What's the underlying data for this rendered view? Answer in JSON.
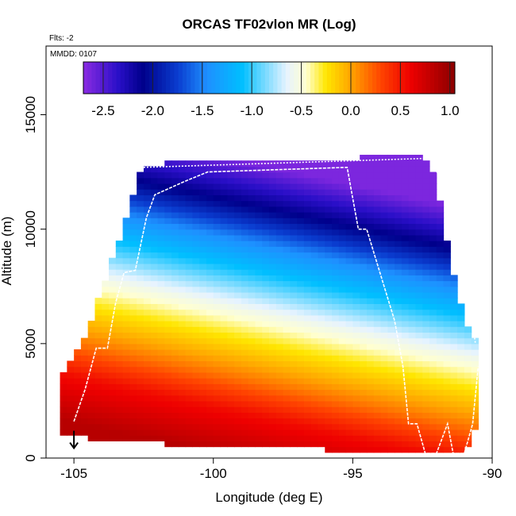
{
  "chart_data": {
    "type": "heatmap",
    "title": "ORCAS TF02vlon MR (Log)",
    "xlabel": "Longitude (deg E)",
    "ylabel": "Altitude (m)",
    "xlim": [
      -106,
      -90
    ],
    "ylim": [
      0,
      18000
    ],
    "xticks": [
      -105,
      -100,
      -95,
      -90
    ],
    "yticks": [
      0,
      5000,
      10000,
      15000
    ],
    "xtick_labels": [
      "-105",
      "-100",
      "-95",
      "-90"
    ],
    "ytick_labels": [
      "0",
      "5000",
      "10000",
      "15000"
    ],
    "annotations": {
      "flights": "Flts: -2",
      "date": "MMDD: 0107"
    },
    "colorbar": {
      "range": [
        -2.7,
        1.05
      ],
      "ticks": [
        -2.5,
        -2.0,
        -1.5,
        -1.0,
        -0.5,
        0.0,
        0.5,
        1.0
      ],
      "tick_labels": [
        "-2.5",
        "-2.0",
        "-1.5",
        "-1.0",
        "-0.5",
        "0.0",
        "0.5",
        "1.0"
      ],
      "colors": [
        {
          "v": -2.7,
          "c": "#8a2be2"
        },
        {
          "v": -2.35,
          "c": "#2a0fc8"
        },
        {
          "v": -2.1,
          "c": "#00008b"
        },
        {
          "v": -1.75,
          "c": "#0a3ccf"
        },
        {
          "v": -1.45,
          "c": "#1e90ff"
        },
        {
          "v": -1.1,
          "c": "#00bfff"
        },
        {
          "v": -0.65,
          "c": "#e6f3ff"
        },
        {
          "v": -0.45,
          "c": "#ffffd0"
        },
        {
          "v": -0.25,
          "c": "#ffe600"
        },
        {
          "v": 0.0,
          "c": "#ffa500"
        },
        {
          "v": 0.3,
          "c": "#ff4500"
        },
        {
          "v": 0.6,
          "c": "#ee0000"
        },
        {
          "v": 1.05,
          "c": "#8b0000"
        }
      ]
    },
    "field": {
      "description": "log10 mixing ratio vs altitude; decreases with height, tilted toward west",
      "profile": [
        {
          "alt": 0,
          "v": 0.85
        },
        {
          "alt": 2000,
          "v": 0.55
        },
        {
          "alt": 3500,
          "v": 0.15
        },
        {
          "alt": 5000,
          "v": -0.2
        },
        {
          "alt": 6500,
          "v": -0.55
        },
        {
          "alt": 8000,
          "v": -1.0
        },
        {
          "alt": 9500,
          "v": -1.45
        },
        {
          "alt": 11000,
          "v": -2.05
        },
        {
          "alt": 12000,
          "v": -2.35
        },
        {
          "alt": 13000,
          "v": -2.65
        }
      ],
      "tilt_m_per_deg": 260,
      "tilt_reference_lon": -99
    },
    "coverage_envelope": [
      {
        "lon": -105.5,
        "bottom": 1000,
        "top": 3200
      },
      {
        "lon": -105,
        "bottom": 1000,
        "top": 4500
      },
      {
        "lon": -104.5,
        "bottom": 1000,
        "top": 5500
      },
      {
        "lon": -104,
        "bottom": 900,
        "top": 7200
      },
      {
        "lon": -103.5,
        "bottom": 850,
        "top": 9000
      },
      {
        "lon": -103,
        "bottom": 800,
        "top": 11000
      },
      {
        "lon": -102.5,
        "bottom": 800,
        "top": 12700
      },
      {
        "lon": -101,
        "bottom": 700,
        "top": 12800
      },
      {
        "lon": -99,
        "bottom": 700,
        "top": 12800
      },
      {
        "lon": -96,
        "bottom": 500,
        "top": 12800
      },
      {
        "lon": -94,
        "bottom": 400,
        "top": 13100
      },
      {
        "lon": -92.5,
        "bottom": 300,
        "top": 13100
      },
      {
        "lon": -92,
        "bottom": 300,
        "top": 12000
      },
      {
        "lon": -91.5,
        "bottom": 300,
        "top": 8500
      },
      {
        "lon": -91,
        "bottom": 300,
        "top": 6000
      },
      {
        "lon": -90.6,
        "bottom": 1400,
        "top": 5000
      }
    ],
    "flight_tracks": [
      [
        [
          -105,
          1600
        ],
        [
          -104.6,
          3000
        ],
        [
          -104.2,
          4800
        ],
        [
          -103.8,
          4800
        ],
        [
          -103.5,
          6800
        ],
        [
          -103.2,
          8100
        ],
        [
          -102.8,
          8200
        ],
        [
          -102.4,
          10500
        ],
        [
          -102.1,
          11500
        ],
        [
          -101,
          12100
        ],
        [
          -100.2,
          12500
        ],
        [
          -95.2,
          12700
        ],
        [
          -94.8,
          10000
        ],
        [
          -94.5,
          10000
        ],
        [
          -93.5,
          6000
        ],
        [
          -93.2,
          4000
        ],
        [
          -93,
          1500
        ],
        [
          -92.7,
          1500
        ],
        [
          -92.4,
          200
        ],
        [
          -92,
          200
        ],
        [
          -91.6,
          1500
        ],
        [
          -91.4,
          200
        ],
        [
          -91,
          200
        ],
        [
          -90.7,
          1500
        ],
        [
          -90.5,
          4000
        ]
      ],
      [
        [
          -102.5,
          12700
        ],
        [
          -92.2,
          13100
        ],
        [
          -91.8,
          12000
        ],
        [
          -91.5,
          10000
        ],
        [
          -90.9,
          7500
        ],
        [
          -90.6,
          5000
        ]
      ]
    ],
    "marker": {
      "lon": -105,
      "alt": 500,
      "symbol": "down-arrow"
    }
  }
}
